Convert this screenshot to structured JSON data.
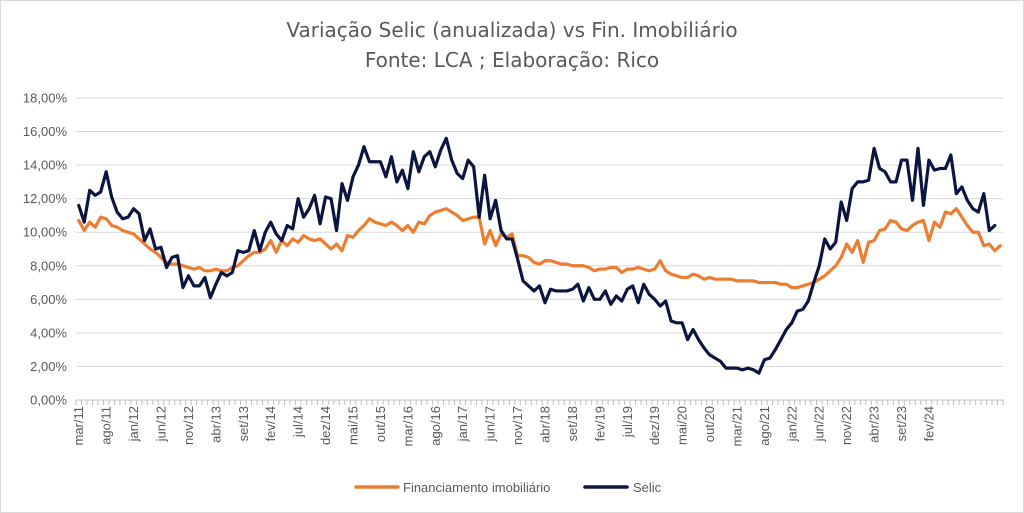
{
  "chart_data": {
    "type": "line",
    "title": "Variação Selic (anualizada) vs Fin. Imobiliário",
    "subtitle": "Fonte: LCA ; Elaboração: Rico",
    "xlabel": "",
    "ylabel": "",
    "ylim": [
      0,
      18
    ],
    "grid": true,
    "legend_position": "bottom",
    "yticks": [
      "0,00%",
      "2,00%",
      "4,00%",
      "6,00%",
      "8,00%",
      "10,00%",
      "12,00%",
      "14,00%",
      "16,00%",
      "18,00%"
    ],
    "xticks": [
      "mar/11",
      "ago/11",
      "jan/12",
      "jun/12",
      "nov/12",
      "abr/13",
      "set/13",
      "fev/14",
      "jul/14",
      "dez/14",
      "mai/15",
      "out/15",
      "mar/16",
      "ago/16",
      "jan/17",
      "jun/17",
      "nov/17",
      "abr/18",
      "set/18",
      "fev/19",
      "jul/19",
      "dez/19",
      "mai/20",
      "out/20",
      "mar/21",
      "ago/21",
      "jan/22",
      "jun/22",
      "nov/22",
      "abr/23",
      "set/23",
      "fev/24"
    ],
    "series": [
      {
        "name": "Financiamento imobiliário",
        "color": "#ED7D31",
        "values": [
          10.7,
          10.1,
          10.6,
          10.3,
          10.9,
          10.8,
          10.4,
          10.3,
          10.1,
          10.0,
          9.9,
          9.6,
          9.3,
          9.0,
          8.8,
          8.5,
          8.2,
          8.1,
          8.1,
          8.0,
          7.9,
          7.8,
          7.9,
          7.7,
          7.7,
          7.8,
          7.7,
          7.7,
          7.9,
          8.0,
          8.3,
          8.6,
          8.8,
          8.8,
          9.0,
          9.5,
          8.8,
          9.5,
          9.2,
          9.6,
          9.4,
          9.8,
          9.6,
          9.5,
          9.6,
          9.3,
          9.0,
          9.3,
          8.9,
          9.8,
          9.7,
          10.1,
          10.4,
          10.8,
          10.6,
          10.5,
          10.4,
          10.6,
          10.4,
          10.1,
          10.4,
          10.0,
          10.6,
          10.5,
          11.0,
          11.2,
          11.3,
          11.4,
          11.2,
          11.0,
          10.7,
          10.8,
          10.9,
          10.9,
          9.3,
          10.1,
          9.2,
          9.9,
          9.7,
          9.9,
          8.6,
          8.6,
          8.5,
          8.2,
          8.1,
          8.3,
          8.3,
          8.2,
          8.1,
          8.1,
          8.0,
          8.0,
          8.0,
          7.9,
          7.7,
          7.8,
          7.8,
          7.9,
          7.9,
          7.6,
          7.8,
          7.8,
          7.9,
          7.8,
          7.7,
          7.8,
          8.3,
          7.7,
          7.5,
          7.4,
          7.3,
          7.3,
          7.5,
          7.4,
          7.2,
          7.3,
          7.2,
          7.2,
          7.2,
          7.2,
          7.1,
          7.1,
          7.1,
          7.1,
          7.0,
          7.0,
          7.0,
          7.0,
          6.9,
          6.9,
          6.7,
          6.7,
          6.8,
          6.9,
          7.0,
          7.2,
          7.4,
          7.7,
          8.0,
          8.5,
          9.3,
          8.8,
          9.5,
          8.2,
          9.4,
          9.5,
          10.1,
          10.2,
          10.7,
          10.6,
          10.2,
          10.1,
          10.4,
          10.6,
          10.7,
          9.5,
          10.6,
          10.3,
          11.2,
          11.1,
          11.4,
          10.9,
          10.4,
          10.0,
          10.0,
          9.2,
          9.3,
          8.9,
          9.2
        ]
      },
      {
        "name": "Selic",
        "color": "#0B1540",
        "values": [
          11.6,
          10.6,
          12.5,
          12.2,
          12.4,
          13.6,
          12.1,
          11.2,
          10.8,
          10.9,
          11.4,
          11.1,
          9.5,
          10.2,
          9.0,
          9.1,
          7.9,
          8.5,
          8.6,
          6.7,
          7.4,
          6.8,
          6.8,
          7.3,
          6.1,
          6.9,
          7.6,
          7.4,
          7.6,
          8.9,
          8.8,
          8.9,
          10.1,
          8.9,
          10.0,
          10.6,
          9.9,
          9.5,
          10.4,
          10.2,
          12.0,
          10.9,
          11.4,
          12.2,
          10.5,
          12.1,
          12.0,
          10.1,
          12.9,
          11.9,
          13.3,
          14.0,
          15.1,
          14.2,
          14.2,
          14.2,
          13.3,
          14.5,
          13.0,
          13.7,
          12.6,
          14.8,
          13.6,
          14.5,
          14.8,
          13.9,
          14.9,
          15.6,
          14.3,
          13.5,
          13.2,
          14.3,
          13.9,
          10.9,
          13.4,
          10.8,
          11.9,
          10.1,
          9.6,
          9.6,
          8.4,
          7.1,
          6.8,
          6.5,
          6.8,
          5.8,
          6.6,
          6.5,
          6.5,
          6.5,
          6.6,
          6.9,
          5.9,
          6.7,
          6.0,
          6.0,
          6.5,
          5.7,
          6.2,
          5.9,
          6.6,
          6.8,
          5.8,
          6.9,
          6.3,
          6.0,
          5.6,
          5.9,
          4.7,
          4.6,
          4.6,
          3.6,
          4.2,
          3.6,
          3.1,
          2.7,
          2.5,
          2.3,
          1.9,
          1.9,
          1.9,
          1.8,
          1.9,
          1.8,
          1.6,
          2.4,
          2.5,
          3.0,
          3.6,
          4.2,
          4.6,
          5.3,
          5.4,
          5.9,
          7.0,
          8.0,
          9.6,
          9.0,
          9.4,
          11.8,
          10.7,
          12.6,
          13.0,
          13.0,
          13.1,
          15.0,
          13.8,
          13.6,
          13.0,
          13.0,
          14.3,
          14.3,
          11.9,
          15.0,
          11.6,
          14.3,
          13.7,
          13.8,
          13.8,
          14.6,
          12.3,
          12.7,
          11.9,
          11.4,
          11.2,
          12.3,
          10.1,
          10.4
        ]
      }
    ]
  }
}
